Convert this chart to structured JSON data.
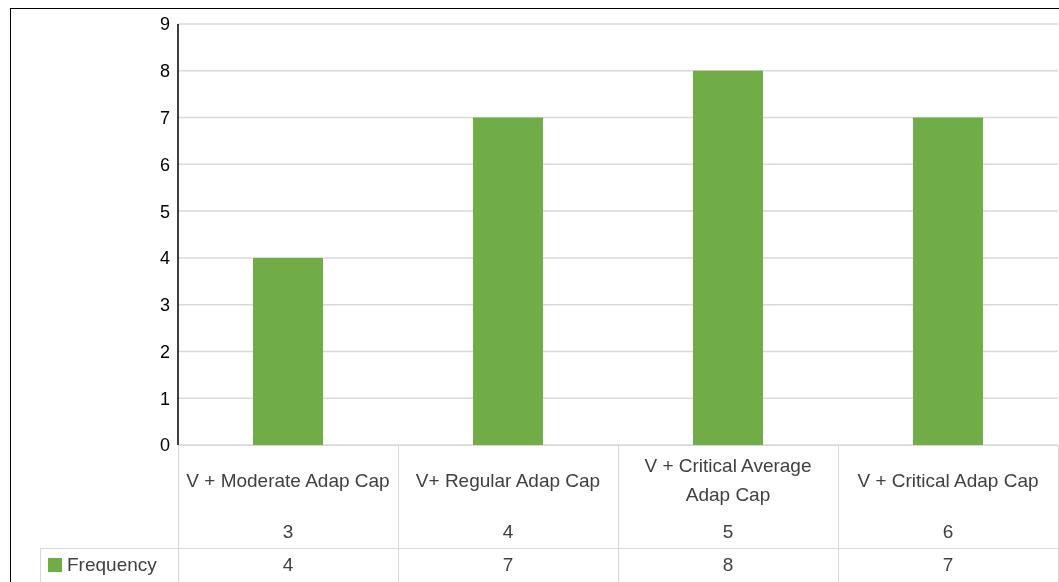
{
  "chart_data": {
    "type": "bar",
    "categories": [
      "V + Moderate Adap Cap",
      "V+  Regular Adap Cap",
      "V + Critical Average Adap Cap",
      "V + Critical Adap Cap"
    ],
    "series": [
      {
        "name": "Frequency",
        "color": "#70ad47",
        "values": [
          4,
          7,
          8,
          7
        ]
      }
    ],
    "annotations": [
      "3",
      "4",
      "5",
      "6"
    ],
    "ylim": [
      0,
      9
    ],
    "yticks": [
      0,
      1,
      2,
      3,
      4,
      5,
      6,
      7,
      8,
      9
    ],
    "grid": "y",
    "legend": "bottom left",
    "data_labels": true
  }
}
